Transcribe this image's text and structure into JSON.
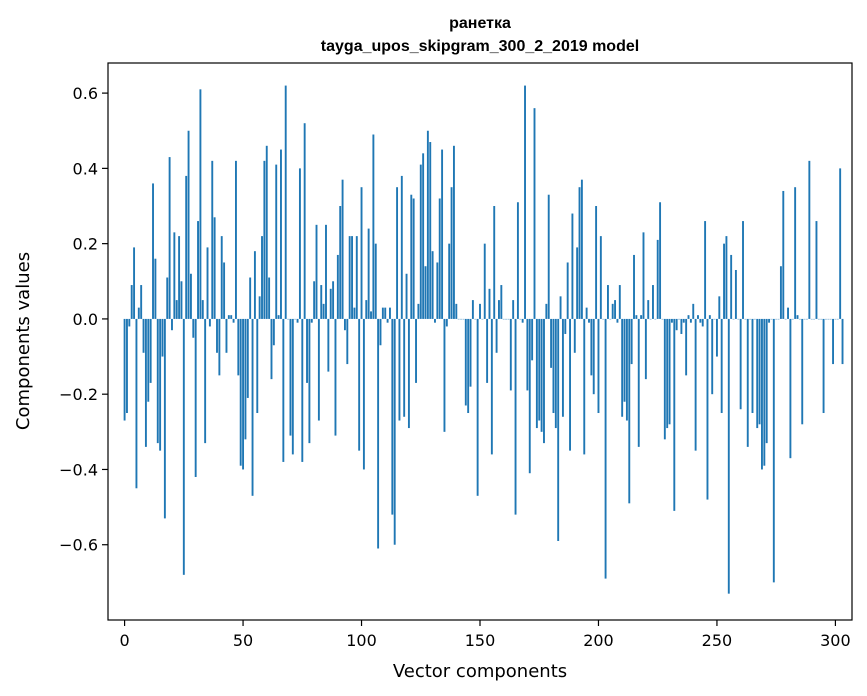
{
  "chart_data": {
    "type": "bar",
    "title": "ранетка",
    "subtitle": "tayga_upos_skipgram_300_2_2019 model",
    "xlabel": "Vector components",
    "ylabel": "Components values",
    "xlim": [
      -7,
      307
    ],
    "ylim": [
      -0.8,
      0.68
    ],
    "xticks": [
      0,
      50,
      100,
      150,
      200,
      250,
      300
    ],
    "yticks": [
      -0.6,
      -0.4,
      -0.2,
      0.0,
      0.2,
      0.4,
      0.6
    ],
    "ytick_labels": [
      "−0.6",
      "−0.4",
      "−0.2",
      "0.0",
      "0.2",
      "0.4",
      "0.6"
    ],
    "grid": false,
    "bar_color": "#1f77b4",
    "values": [
      -0.27,
      -0.25,
      -0.02,
      0.09,
      0.19,
      -0.45,
      0.03,
      0.09,
      -0.09,
      -0.34,
      -0.22,
      -0.17,
      0.36,
      0.16,
      -0.33,
      -0.35,
      -0.1,
      -0.53,
      0.11,
      0.43,
      -0.03,
      0.23,
      0.05,
      0.22,
      0.1,
      -0.68,
      0.38,
      0.5,
      0.12,
      -0.05,
      -0.42,
      0.26,
      0.61,
      0.05,
      -0.33,
      0.19,
      -0.02,
      0.42,
      0.27,
      -0.09,
      -0.15,
      0.22,
      0.15,
      -0.09,
      0.01,
      0.01,
      -0.01,
      0.42,
      -0.15,
      -0.39,
      -0.4,
      -0.32,
      -0.21,
      0.11,
      -0.47,
      0.18,
      -0.25,
      0.06,
      0.22,
      0.42,
      0.46,
      0.11,
      -0.16,
      -0.07,
      0.41,
      0.01,
      0.45,
      -0.38,
      0.62,
      0.0,
      -0.31,
      -0.36,
      0.0,
      -0.01,
      0.4,
      -0.38,
      0.52,
      -0.17,
      -0.33,
      -0.01,
      0.1,
      0.25,
      -0.27,
      0.09,
      0.04,
      0.25,
      -0.14,
      0.08,
      0.1,
      -0.31,
      0.17,
      0.3,
      0.37,
      -0.03,
      -0.12,
      0.22,
      0.22,
      0.03,
      0.22,
      -0.35,
      0.35,
      -0.4,
      0.05,
      0.24,
      0.02,
      0.49,
      0.2,
      -0.61,
      -0.07,
      0.03,
      0.03,
      -0.01,
      0.03,
      -0.52,
      -0.6,
      0.35,
      -0.27,
      0.38,
      -0.26,
      0.12,
      -0.29,
      0.33,
      0.32,
      -0.17,
      0.04,
      0.41,
      0.44,
      0.14,
      0.5,
      0.47,
      0.18,
      -0.01,
      0.15,
      0.32,
      0.45,
      -0.3,
      -0.02,
      0.2,
      0.35,
      0.46,
      0.04,
      0.0,
      0.0,
      0.0,
      -0.23,
      -0.25,
      -0.18,
      0.05,
      0.0,
      -0.47,
      0.04,
      0.0,
      0.2,
      -0.17,
      0.08,
      -0.36,
      0.3,
      -0.09,
      0.05,
      0.09,
      0.0,
      0.0,
      0.0,
      -0.19,
      0.05,
      -0.52,
      0.31,
      0.0,
      -0.01,
      0.62,
      -0.19,
      -0.41,
      -0.11,
      0.56,
      -0.29,
      -0.27,
      -0.3,
      -0.33,
      0.04,
      0.33,
      -0.13,
      -0.25,
      -0.29,
      -0.59,
      0.06,
      -0.26,
      -0.04,
      0.15,
      -0.35,
      0.28,
      -0.09,
      0.19,
      0.35,
      0.37,
      -0.36,
      0.03,
      -0.01,
      -0.15,
      -0.2,
      0.3,
      -0.25,
      0.22,
      0.0,
      -0.69,
      0.09,
      0.0,
      0.04,
      0.05,
      -0.01,
      0.09,
      -0.26,
      -0.22,
      -0.27,
      -0.49,
      -0.12,
      0.17,
      0.01,
      -0.34,
      0.01,
      0.23,
      -0.16,
      0.05,
      0.0,
      0.09,
      0.0,
      0.21,
      0.31,
      0.0,
      -0.32,
      -0.29,
      -0.28,
      -0.01,
      -0.51,
      -0.03,
      0.0,
      -0.04,
      -0.01,
      -0.15,
      0.01,
      -0.01,
      0.04,
      -0.35,
      0.01,
      -0.01,
      -0.02,
      0.26,
      -0.48,
      0.01,
      -0.2,
      0.0,
      -0.1,
      0.06,
      -0.25,
      0.2,
      0.22,
      -0.73,
      0.17,
      0.0,
      0.13,
      0.0,
      -0.24,
      0.26,
      0.0,
      -0.34,
      0.0,
      -0.25,
      0.0,
      -0.29,
      -0.28,
      -0.4,
      -0.39,
      -0.33,
      -0.01,
      0.0,
      -0.7,
      0.0,
      0.0,
      0.14,
      0.34,
      0.0,
      0.03,
      -0.37,
      0.0,
      0.35,
      0.01,
      0.0,
      -0.28,
      0.0,
      0.0,
      0.42,
      0.0,
      0.0,
      0.26,
      0.0,
      0.0,
      -0.25,
      0.0,
      0.0,
      0.0,
      -0.12,
      0.0,
      0.0,
      0.4,
      -0.12
    ]
  }
}
